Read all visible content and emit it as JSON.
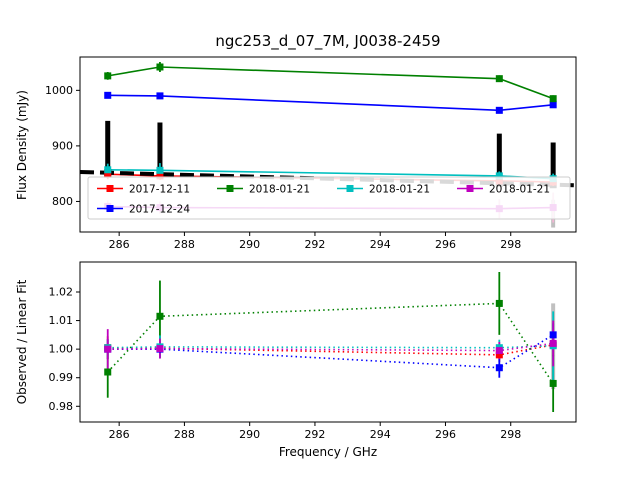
{
  "figure": {
    "title": "ngc253_d_07_7M, J0038-2459"
  },
  "chart_data": [
    {
      "type": "line",
      "title": "ngc253_d_07_7M, J0038-2459",
      "ylabel": "Flux Density (mJy)",
      "xlabel": "",
      "xlim": [
        284.8,
        300.0
      ],
      "ylim": [
        745,
        1060
      ],
      "xticks": {
        "values": [
          286,
          288,
          290,
          292,
          294,
          296,
          298
        ],
        "labels": [
          "286",
          "288",
          "290",
          "292",
          "294",
          "296",
          "298"
        ]
      },
      "yticks": {
        "values": [
          800,
          900,
          1000
        ],
        "labels": [
          "800",
          "900",
          "1000"
        ]
      },
      "x": [
        285.65,
        287.25,
        297.65,
        299.3
      ],
      "linestyle": "solid",
      "series": [
        {
          "name": "2017-12-11",
          "color": "#ff0000",
          "y": [
            849,
            846,
            837,
            835
          ],
          "err": [
            9,
            7,
            6,
            7
          ]
        },
        {
          "name": "2017-12-24",
          "color": "#0000ff",
          "y": [
            991,
            990,
            964,
            974
          ],
          "err": [
            4,
            4,
            4,
            5
          ]
        },
        {
          "name": "2018-01-21",
          "color": "#008000",
          "y": [
            1026,
            1042,
            1021,
            985
          ],
          "err": [
            7,
            9,
            6,
            6
          ]
        },
        {
          "name": "2018-01-21",
          "color": "#00bfbf",
          "y": [
            857,
            856,
            846,
            841
          ],
          "err": [
            11,
            13,
            8,
            9
          ]
        },
        {
          "name": "2018-01-21",
          "color": "#bf00bf",
          "y": [
            791,
            789,
            787,
            789
          ],
          "err": [
            11,
            11,
            17,
            27
          ],
          "err_color": "#f2b6d4"
        }
      ],
      "fit": {
        "color": "#000000",
        "width": 4,
        "dash": "14 6",
        "x": [
          284.8,
          300.0
        ],
        "y": [
          853,
          829
        ],
        "marker_x": [
          285.65,
          287.25,
          297.65,
          299.3
        ],
        "marker_y": [
          851.6,
          849.1,
          832.7,
          830.1
        ]
      },
      "bars": [
        {
          "x": 285.65,
          "y0": 862,
          "y1": 945,
          "color": "#000000",
          "w": 5
        },
        {
          "x": 287.25,
          "y0": 858,
          "y1": 942,
          "color": "#000000",
          "w": 5
        },
        {
          "x": 297.65,
          "y0": 830,
          "y1": 922,
          "color": "#000000",
          "w": 5
        },
        {
          "x": 299.3,
          "y0": 826,
          "y1": 906,
          "color": "#000000",
          "w": 5
        },
        {
          "x": 299.3,
          "y0": 753,
          "y1": 803,
          "color": "#c0c0c0",
          "w": 4
        }
      ],
      "legend": {
        "ncol": 4,
        "labels": [
          "2017-12-11",
          "2017-12-24",
          "2018-01-21",
          "2018-01-21",
          "2018-01-21"
        ]
      }
    },
    {
      "type": "line",
      "title": "",
      "ylabel": "Observed / Linear Fit",
      "xlabel": "Frequency / GHz",
      "xlim": [
        284.8,
        300.0
      ],
      "ylim": [
        0.9745,
        1.0305
      ],
      "xticks": {
        "values": [
          286,
          288,
          290,
          292,
          294,
          296,
          298
        ],
        "labels": [
          "286",
          "288",
          "290",
          "292",
          "294",
          "296",
          "298"
        ]
      },
      "yticks": {
        "values": [
          0.98,
          0.99,
          1.0,
          1.01,
          1.02
        ],
        "labels": [
          "0.98",
          "0.99",
          "1.00",
          "1.01",
          "1.02"
        ]
      },
      "x": [
        285.65,
        287.25,
        297.65,
        299.3
      ],
      "linestyle": "dotted",
      "series": [
        {
          "name": "2017-12-11",
          "color": "#ff0000",
          "y": [
            1.0005,
            1.0003,
            0.998,
            1.0015
          ],
          "err": [
            0.004,
            0.003,
            0.0025,
            0.004
          ]
        },
        {
          "name": "2017-12-24",
          "color": "#0000ff",
          "y": [
            1.0,
            1.0,
            0.9935,
            1.005
          ],
          "err": [
            0.0035,
            0.003,
            0.0035,
            0.004
          ]
        },
        {
          "name": "2018-01-21",
          "color": "#008000",
          "y": [
            0.992,
            1.0115,
            1.016,
            0.988
          ],
          "err": [
            0.009,
            0.0125,
            0.011,
            0.01
          ]
        },
        {
          "name": "2018-01-21",
          "color": "#00bfbf",
          "y": [
            1.0005,
            1.0008,
            1.0005,
            1.0012
          ],
          "err": [
            0.003,
            0.004,
            0.0028,
            0.012
          ]
        },
        {
          "name": "2018-01-21",
          "color": "#bf00bf",
          "y": [
            1.0,
            1.0002,
            0.9995,
            1.002
          ],
          "err": [
            0.007,
            0.0035,
            0.003,
            0.008
          ]
        }
      ],
      "bars": [
        {
          "x": 299.3,
          "y0": 0.986,
          "y1": 1.016,
          "color": "#c0c0c0",
          "w": 4
        }
      ]
    }
  ]
}
